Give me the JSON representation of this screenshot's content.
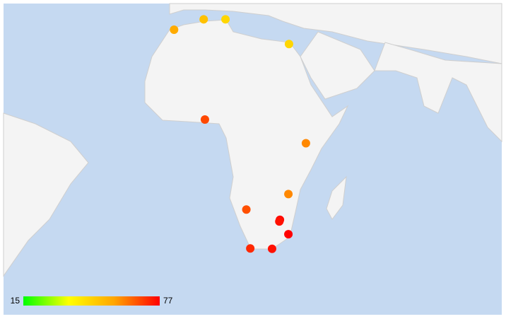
{
  "chart_data": {
    "type": "geo",
    "color_axis": {
      "min": 15,
      "max": 77,
      "colors": [
        "#00ff00",
        "#ffff00",
        "#ffa500",
        "#ff0000"
      ]
    },
    "markers": [
      {
        "lon": -6.8,
        "lat": 34.0,
        "value": 55
      },
      {
        "lon": 3.0,
        "lat": 36.8,
        "value": 50
      },
      {
        "lon": 10.2,
        "lat": 36.8,
        "value": 45
      },
      {
        "lon": 31.2,
        "lat": 30.0,
        "value": 45
      },
      {
        "lon": 3.4,
        "lat": 6.5,
        "value": 68
      },
      {
        "lon": 36.8,
        "lat": -1.3,
        "value": 60
      },
      {
        "lon": 31.0,
        "lat": -17.8,
        "value": 60
      },
      {
        "lon": 17.1,
        "lat": -22.6,
        "value": 67
      },
      {
        "lon": 28.2,
        "lat": -25.7,
        "value": 76
      },
      {
        "lon": 28.0,
        "lat": -26.2,
        "value": 75
      },
      {
        "lon": 31.0,
        "lat": -29.9,
        "value": 77
      },
      {
        "lon": 18.4,
        "lat": -33.9,
        "value": 72
      },
      {
        "lon": 25.6,
        "lat": -34.0,
        "value": 75
      }
    ]
  }
}
